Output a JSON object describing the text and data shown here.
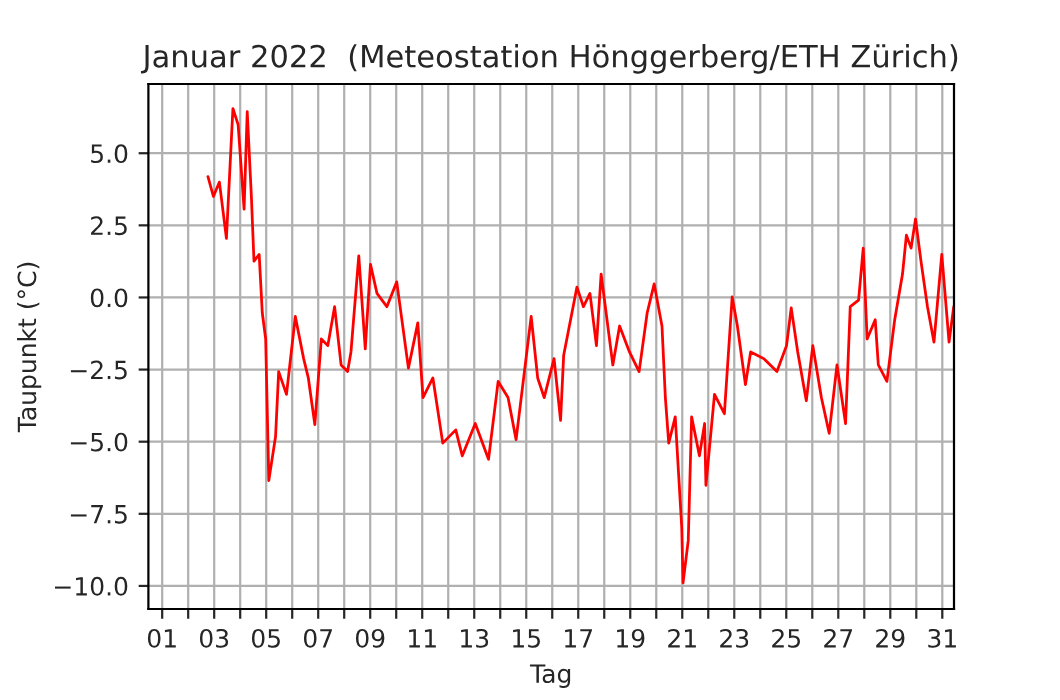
{
  "chart_data": {
    "type": "line",
    "title": "Januar 2022  (Meteostation Hönggerberg/ETH Zürich)",
    "xlabel": "Tag",
    "ylabel": "Taupunkt (°C)",
    "series": [
      {
        "color": "#ff0000",
        "x": [
          2.76,
          2.97,
          3.2,
          3.47,
          3.72,
          3.92,
          4.15,
          4.27,
          4.43,
          4.53,
          4.73,
          4.85,
          4.98,
          5.1,
          5.36,
          5.48,
          5.78,
          6.12,
          6.44,
          6.62,
          6.87,
          7.12,
          7.37,
          7.63,
          7.88,
          8.13,
          8.26,
          8.56,
          8.81,
          9.01,
          9.26,
          9.64,
          10.02,
          10.47,
          10.83,
          11.03,
          11.41,
          11.79,
          12.29,
          12.54,
          13.04,
          13.55,
          13.92,
          14.3,
          14.61,
          14.93,
          15.19,
          15.44,
          15.69,
          16.07,
          16.32,
          16.44,
          16.95,
          17.2,
          17.45,
          17.7,
          17.88,
          18.33,
          18.59,
          18.97,
          19.34,
          19.65,
          19.92,
          20.22,
          20.35,
          20.48,
          20.73,
          20.98,
          21.03,
          21.23,
          21.36,
          21.66,
          21.86,
          21.91,
          22.24,
          22.62,
          22.92,
          23.12,
          23.43,
          23.63,
          24.13,
          24.64,
          25.01,
          25.19,
          25.44,
          25.77,
          26.02,
          26.35,
          26.65,
          26.95,
          27.28,
          27.46,
          27.78,
          27.96,
          28.11,
          28.42,
          28.54,
          28.87,
          29.17,
          29.47,
          29.62,
          29.8,
          29.97,
          30.18,
          30.43,
          30.68,
          30.98,
          31.26,
          31.44
        ],
        "values": [
          4.19,
          3.5,
          4.0,
          2.05,
          6.55,
          5.99,
          3.06,
          6.44,
          3.5,
          1.26,
          1.49,
          -0.54,
          -1.44,
          -6.35,
          -4.82,
          -2.57,
          -3.36,
          -0.66,
          -2.12,
          -2.79,
          -4.41,
          -1.44,
          -1.67,
          -0.32,
          -2.34,
          -2.57,
          -1.89,
          1.44,
          -1.78,
          1.15,
          0.14,
          -0.32,
          0.54,
          -2.45,
          -0.88,
          -3.47,
          -2.79,
          -5.05,
          -4.59,
          -5.49,
          -4.37,
          -5.61,
          -2.91,
          -3.47,
          -4.93,
          -2.57,
          -0.66,
          -2.79,
          -3.47,
          -2.12,
          -4.26,
          -2.0,
          0.36,
          -0.32,
          0.14,
          -1.67,
          0.81,
          -2.34,
          -0.99,
          -1.89,
          -2.57,
          -0.54,
          0.47,
          -0.99,
          -3.47,
          -5.05,
          -4.14,
          -7.97,
          -9.89,
          -8.43,
          -4.14,
          -5.49,
          -4.37,
          -6.51,
          -3.36,
          -4.03,
          0.02,
          -0.99,
          -3.02,
          -1.89,
          -2.12,
          -2.57,
          -1.67,
          -0.36,
          -1.89,
          -3.58,
          -1.67,
          -3.47,
          -4.71,
          -2.34,
          -4.37,
          -0.32,
          -0.09,
          1.71,
          -1.44,
          -0.77,
          -2.34,
          -2.91,
          -0.77,
          0.81,
          2.16,
          1.71,
          2.72,
          1.26,
          -0.32,
          -1.55,
          1.49,
          -1.55,
          -0.32
        ]
      }
    ],
    "xlim": [
      0.47,
      31.45
    ],
    "xticks": [
      {
        "value": 1,
        "label": "01"
      },
      {
        "value": 2,
        "label": null
      },
      {
        "value": 3,
        "label": "03"
      },
      {
        "value": 4,
        "label": null
      },
      {
        "value": 5,
        "label": "05"
      },
      {
        "value": 6,
        "label": null
      },
      {
        "value": 7,
        "label": "07"
      },
      {
        "value": 8,
        "label": null
      },
      {
        "value": 9,
        "label": "09"
      },
      {
        "value": 10,
        "label": null
      },
      {
        "value": 11,
        "label": "11"
      },
      {
        "value": 12,
        "label": null
      },
      {
        "value": 13,
        "label": "13"
      },
      {
        "value": 14,
        "label": null
      },
      {
        "value": 15,
        "label": "15"
      },
      {
        "value": 16,
        "label": null
      },
      {
        "value": 17,
        "label": "17"
      },
      {
        "value": 18,
        "label": null
      },
      {
        "value": 19,
        "label": "19"
      },
      {
        "value": 20,
        "label": null
      },
      {
        "value": 21,
        "label": "21"
      },
      {
        "value": 22,
        "label": null
      },
      {
        "value": 23,
        "label": "23"
      },
      {
        "value": 24,
        "label": null
      },
      {
        "value": 25,
        "label": "25"
      },
      {
        "value": 26,
        "label": null
      },
      {
        "value": 27,
        "label": "27"
      },
      {
        "value": 28,
        "label": null
      },
      {
        "value": 29,
        "label": "29"
      },
      {
        "value": 30,
        "label": null
      },
      {
        "value": 31,
        "label": "31"
      }
    ],
    "ylim": [
      -10.8,
      7.4
    ],
    "yticks": [
      {
        "value": -10,
        "label": "−10.0"
      },
      {
        "value": -7.5,
        "label": "−7.5"
      },
      {
        "value": -5,
        "label": "−5.0"
      },
      {
        "value": -2.5,
        "label": "−2.5"
      },
      {
        "value": 0,
        "label": "0.0"
      },
      {
        "value": 2.5,
        "label": "2.5"
      },
      {
        "value": 5,
        "label": "5.0"
      }
    ],
    "grid": true,
    "marker": "none",
    "line_style": "solid"
  }
}
